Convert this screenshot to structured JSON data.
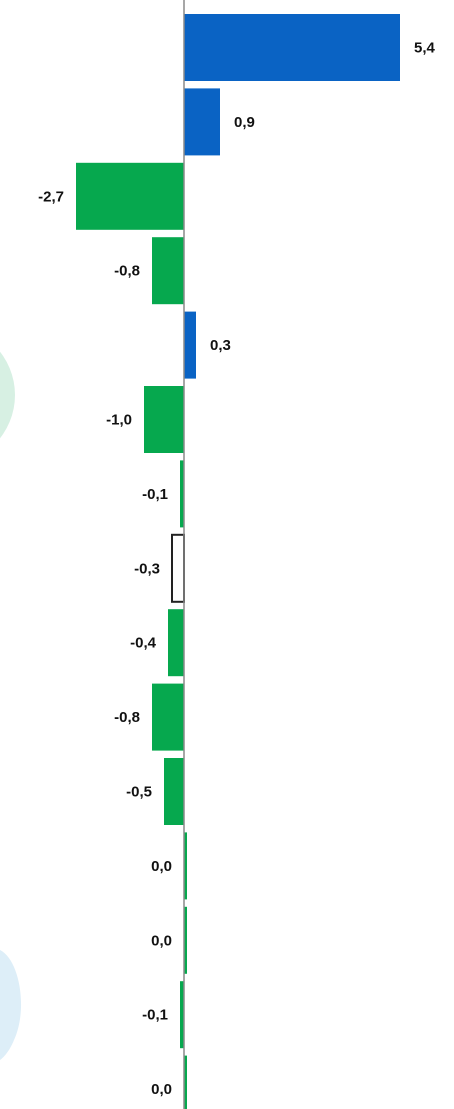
{
  "chart_data": {
    "type": "bar",
    "orientation": "horizontal",
    "title": "",
    "values": [
      5.4,
      0.9,
      -2.7,
      -0.8,
      0.3,
      -1.0,
      -0.1,
      -0.3,
      -0.4,
      -0.8,
      -0.5,
      0.0,
      0.0,
      -0.1,
      0.0
    ],
    "value_labels": [
      "5,4",
      "0,9",
      "-2,7",
      "-0,8",
      "0,3",
      "-1,0",
      "-0,1",
      "-0,3",
      "-0,4",
      "-0,8",
      "-0,5",
      "0,0",
      "0,0",
      "-0,1",
      "0,0"
    ],
    "bar_styles": [
      "positive",
      "positive",
      "negative",
      "negative",
      "positive",
      "negative",
      "negative",
      "outline",
      "negative",
      "negative",
      "negative",
      "negative",
      "negative",
      "negative",
      "negative"
    ],
    "colors": {
      "positive": "#0a63c4",
      "negative": "#06a84e",
      "outline_stroke": "#222222",
      "axis": "#8a8a8a",
      "circle_fill": "#d7f0e3",
      "blob_fill": "#ddeef8"
    },
    "grid": false,
    "legend": "none"
  }
}
